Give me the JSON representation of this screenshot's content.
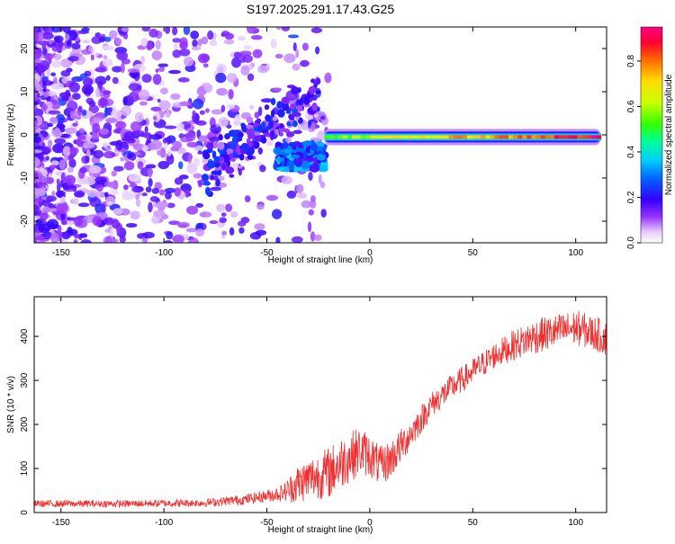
{
  "title": "S197.2025.291.17.43.G25",
  "chart_data": [
    {
      "type": "heatmap",
      "xlabel": "Height of straight line (km)",
      "ylabel": "Frequency (Hz)",
      "xlim": [
        -163,
        115
      ],
      "ylim": [
        -25,
        25
      ],
      "xticks": [
        -150,
        -100,
        -50,
        0,
        50,
        100
      ],
      "yticks": [
        -20,
        -10,
        0,
        10,
        20
      ],
      "colorbar": {
        "label": "Normalized spectral amplitude",
        "range": [
          0.0,
          0.95
        ],
        "ticks": [
          0.0,
          0.2,
          0.4,
          0.6,
          0.8
        ],
        "tick_labels": [
          "0.0",
          "0.2",
          "0.4",
          "0.6",
          "0.8"
        ]
      },
      "features": [
        {
          "name": "diffuse low-amplitude noise",
          "x_range": [
            -163,
            -20
          ],
          "freq_range": [
            -25,
            25
          ],
          "amplitude": 0.1
        },
        {
          "name": "transition cluster",
          "x_range": [
            -45,
            -22
          ],
          "freq_range": [
            -8,
            -2
          ],
          "amplitude": 0.3
        },
        {
          "name": "narrow spectral line",
          "x_range": [
            -22,
            112
          ],
          "freq_range": [
            -2,
            1
          ],
          "amplitude_start": 0.6,
          "amplitude_end": 0.95
        }
      ]
    },
    {
      "type": "line",
      "xlabel": "Height of straight line (km)",
      "ylabel": "SNR (10 * v/v)",
      "xlim": [
        -163,
        115
      ],
      "ylim": [
        0,
        490
      ],
      "xticks": [
        -150,
        -100,
        -50,
        0,
        50,
        100
      ],
      "yticks": [
        0,
        100,
        200,
        300,
        400
      ],
      "series": [
        {
          "name": "SNR",
          "color": "#ee3030",
          "x": [
            -163,
            -120,
            -80,
            -60,
            -50,
            -42,
            -35,
            -28,
            -20,
            -12,
            -5,
            0,
            5,
            10,
            20,
            30,
            40,
            50,
            60,
            70,
            80,
            90,
            100,
            110,
            115
          ],
          "mean": [
            20,
            20,
            22,
            30,
            38,
            45,
            65,
            80,
            90,
            120,
            140,
            130,
            105,
            120,
            180,
            245,
            285,
            320,
            355,
            380,
            400,
            410,
            420,
            405,
            395
          ],
          "noise": [
            8,
            8,
            9,
            12,
            14,
            20,
            45,
            50,
            60,
            60,
            55,
            50,
            45,
            45,
            35,
            30,
            30,
            30,
            30,
            35,
            40,
            40,
            40,
            40,
            40
          ]
        }
      ]
    }
  ]
}
